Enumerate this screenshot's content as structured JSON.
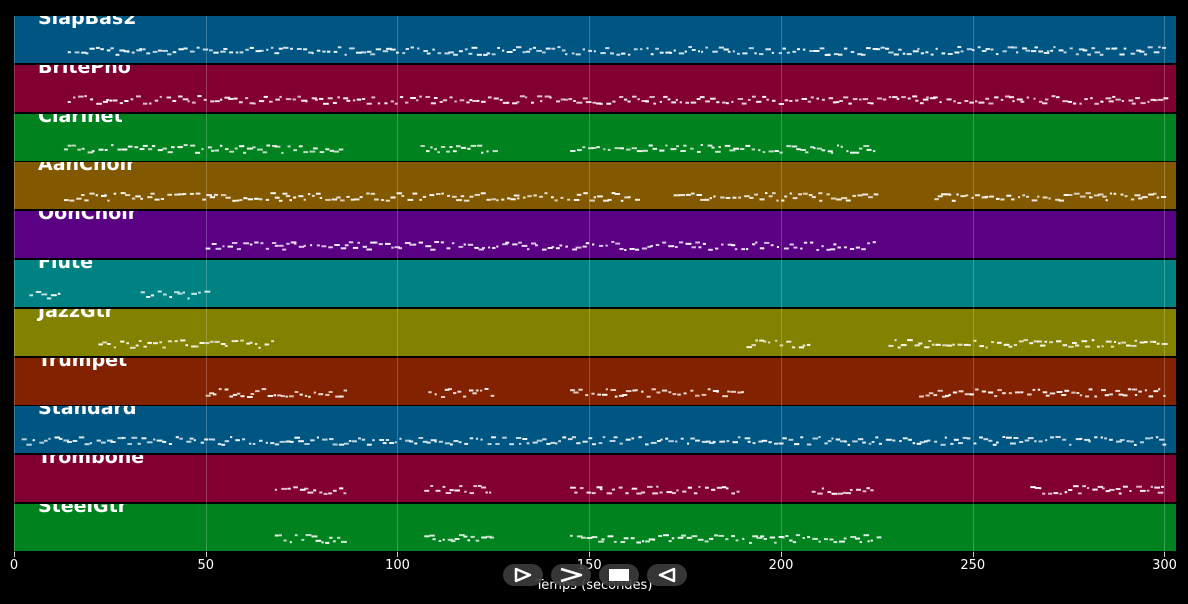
{
  "tracks": [
    {
      "name": "SlapBas2",
      "color": "#005683"
    },
    {
      "name": "BritePno",
      "color": "#820031"
    },
    {
      "name": "Clarinet",
      "color": "#00821e"
    },
    {
      "name": "AahChoir",
      "color": "#825800"
    },
    {
      "name": "OohChoir",
      "color": "#5a0082"
    },
    {
      "name": "Flute",
      "color": "#008282"
    },
    {
      "name": "JazzGtr",
      "color": "#828200"
    },
    {
      "name": "Trumpet",
      "color": "#822200"
    },
    {
      "name": "Standard",
      "color": "#005683"
    },
    {
      "name": "Trombone",
      "color": "#820031"
    },
    {
      "name": "SteelGtr",
      "color": "#00821e"
    }
  ],
  "axis": {
    "xlabel": "Temps (secondes)",
    "ticks": [
      "0",
      "50",
      "100",
      "150",
      "200",
      "250",
      "300"
    ],
    "tick_values": [
      0,
      50,
      100,
      150,
      200,
      250,
      300
    ],
    "xlim": [
      0,
      303
    ]
  },
  "controls": {
    "play_icon": "play-outline-icon",
    "next_icon": "chevron-right-icon",
    "stop_icon": "stop-icon",
    "rewind_icon": "rewind-icon"
  }
}
